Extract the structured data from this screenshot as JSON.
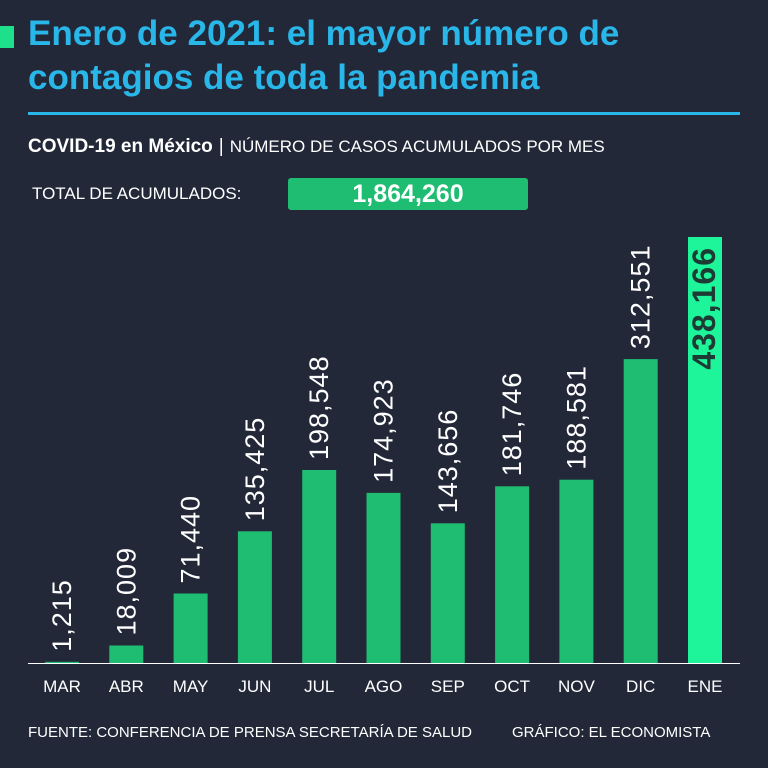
{
  "header": {
    "title": "Enero de 2021: el mayor número de contagios de toda la pandemia",
    "subtitle_country": "COVID-19 en México",
    "subtitle_separator": "|",
    "subtitle_description": "NÚMERO DE CASOS ACUMULADOS POR MES"
  },
  "total": {
    "label": "TOTAL DE ACUMULADOS:",
    "value": "1,864,260"
  },
  "footer": {
    "source": "FUENTE: CONFERENCIA DE PRENSA SECRETARÍA DE SALUD",
    "credit": "GRÁFICO: EL ECONOMISTA"
  },
  "colors": {
    "background": "#222838",
    "title": "#29b6e8",
    "bar": "#1fbd72",
    "bar_highlight": "#1ef59a",
    "highlight_label": "#1d3a34",
    "axis": "#ffffff"
  },
  "chart_data": {
    "type": "bar",
    "title": "COVID-19 en México",
    "xlabel": "",
    "ylabel": "",
    "ylim": [
      0,
      438166
    ],
    "grid": false,
    "categories": [
      "MAR",
      "ABR",
      "MAY",
      "JUN",
      "JUL",
      "AGO",
      "SEP",
      "OCT",
      "NOV",
      "DIC",
      "ENE"
    ],
    "values": [
      1215,
      18009,
      71440,
      135425,
      198548,
      174923,
      143656,
      181746,
      188581,
      312551,
      438166
    ],
    "labels": [
      "1,215",
      "18,009",
      "71,440",
      "135,425",
      "198,548",
      "174,923",
      "143,656",
      "181,746",
      "188,581",
      "312,551",
      "438,166"
    ],
    "highlight_index": 10
  }
}
